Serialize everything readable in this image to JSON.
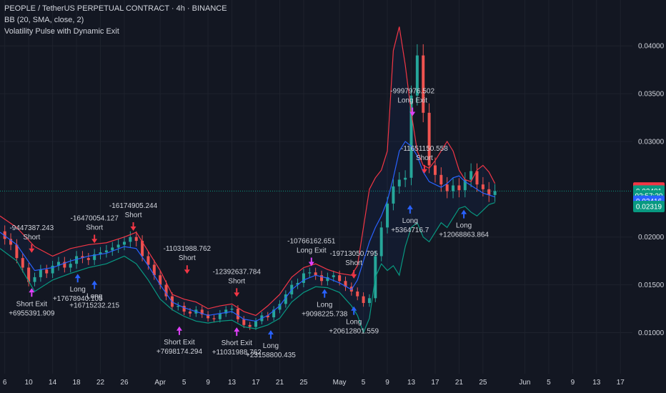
{
  "header": {
    "symbol_line": "PEOPLE / TetherUS PERPETUAL CONTRACT · 4h · BINANCE",
    "indicator_bb": "BB (20, SMA, close, 2)",
    "strategy_name": "Volatility Pulse with Dynamic Exit"
  },
  "colors": {
    "background": "#131722",
    "grid": "#1e222d",
    "candle_up": "#26a69a",
    "candle_down": "#ef5350",
    "bb_upper": "#f23645",
    "bb_lower": "#089981",
    "bb_basis": "#2962ff",
    "long_arrow": "#2962ff",
    "short_arrow": "#f23645",
    "exit_arrow": "#e040fb",
    "label_text": "#d1d4dc"
  },
  "chart_data": {
    "type": "line",
    "title": "PEOPLE / TetherUS PERPETUAL CONTRACT · 4h · BINANCE",
    "y_ticks": [
      "0.04000",
      "0.03500",
      "0.03000",
      "0.02000",
      "0.01500",
      "0.01000"
    ],
    "y_tick_values": [
      0.04,
      0.035,
      0.03,
      0.02,
      0.015,
      0.01
    ],
    "ylim": [
      0.0057,
      0.0448
    ],
    "x_ticks": [
      "6",
      "10",
      "14",
      "18",
      "22",
      "26",
      "Apr",
      "5",
      "9",
      "13",
      "17",
      "21",
      "25",
      "May",
      "5",
      "9",
      "13",
      "17",
      "21",
      "25",
      "Jun",
      "5",
      "9",
      "13",
      "17"
    ],
    "x_tick_days": [
      6,
      10,
      14,
      18,
      22,
      26,
      32,
      36,
      40,
      44,
      48,
      52,
      56,
      62,
      66,
      70,
      74,
      78,
      82,
      86,
      93,
      97,
      101,
      105,
      109
    ],
    "x_range_days": [
      5.2,
      111
    ],
    "series": [
      {
        "name": "close",
        "x": [
          5.2,
          6,
          7,
          8,
          9,
          10,
          11,
          12,
          13,
          14,
          15,
          16,
          17,
          18,
          19,
          20,
          21,
          22,
          23,
          24,
          25,
          26,
          27,
          28,
          29,
          30,
          31,
          32,
          33,
          34,
          35,
          36,
          37,
          38,
          39,
          40,
          41,
          42,
          43,
          44,
          45,
          46,
          47,
          48,
          49,
          50,
          51,
          52,
          53,
          54,
          55,
          56,
          57,
          58,
          59,
          60,
          61,
          62,
          63,
          64,
          65,
          66,
          67,
          68,
          69,
          70,
          71,
          72,
          73,
          74,
          75,
          76,
          77,
          78,
          79,
          80,
          81,
          82,
          83,
          84,
          85,
          86,
          87,
          88
        ],
        "y": [
          0.0206,
          0.0198,
          0.0192,
          0.0178,
          0.0168,
          0.0153,
          0.0158,
          0.0166,
          0.0162,
          0.017,
          0.0174,
          0.0168,
          0.0172,
          0.018,
          0.0178,
          0.0176,
          0.0182,
          0.0184,
          0.0186,
          0.0189,
          0.0192,
          0.0195,
          0.02,
          0.0196,
          0.018,
          0.0171,
          0.016,
          0.015,
          0.0138,
          0.0127,
          0.0128,
          0.0122,
          0.012,
          0.0124,
          0.0119,
          0.0115,
          0.0114,
          0.012,
          0.0124,
          0.0125,
          0.0114,
          0.0108,
          0.0106,
          0.0112,
          0.0118,
          0.0116,
          0.0124,
          0.013,
          0.014,
          0.015,
          0.0152,
          0.0162,
          0.0163,
          0.016,
          0.0154,
          0.0158,
          0.016,
          0.0154,
          0.0148,
          0.0143,
          0.0138,
          0.0131,
          0.0136,
          0.018,
          0.021,
          0.0235,
          0.0253,
          0.026,
          0.0262,
          0.0348,
          0.039,
          0.033,
          0.0275,
          0.0265,
          0.0255,
          0.0248,
          0.0254,
          0.0249,
          0.026,
          0.0269,
          0.0255,
          0.025,
          0.0244,
          0.0248
        ]
      },
      {
        "name": "BB upper",
        "x": [
          5.2,
          8,
          11,
          14,
          17,
          20,
          23,
          26,
          28,
          30,
          32,
          34,
          36,
          38,
          40,
          42,
          44,
          46,
          48,
          50,
          52,
          54,
          56,
          58,
          60,
          62,
          64,
          65,
          66,
          67,
          68,
          69,
          70,
          71,
          72,
          73,
          74,
          75,
          76,
          77,
          78,
          79,
          80,
          81,
          82,
          83,
          84,
          85,
          86,
          87,
          88
        ],
        "y": [
          0.0222,
          0.021,
          0.019,
          0.018,
          0.0188,
          0.0192,
          0.0194,
          0.02,
          0.0205,
          0.0185,
          0.0165,
          0.014,
          0.0135,
          0.0132,
          0.0125,
          0.0128,
          0.013,
          0.0122,
          0.0118,
          0.0128,
          0.014,
          0.0158,
          0.0168,
          0.0172,
          0.0166,
          0.0162,
          0.016,
          0.017,
          0.021,
          0.025,
          0.0262,
          0.027,
          0.029,
          0.0395,
          0.042,
          0.038,
          0.033,
          0.029,
          0.0275,
          0.0272,
          0.028,
          0.029,
          0.03,
          0.029,
          0.027,
          0.026,
          0.0258,
          0.027,
          0.0275,
          0.0268,
          0.0256
        ]
      },
      {
        "name": "BB basis",
        "x": [
          5.2,
          8,
          11,
          14,
          17,
          20,
          23,
          26,
          28,
          30,
          32,
          34,
          36,
          38,
          40,
          42,
          44,
          46,
          48,
          50,
          52,
          54,
          56,
          58,
          60,
          62,
          64,
          65,
          66,
          67,
          68,
          69,
          70,
          71,
          72,
          73,
          74,
          75,
          76,
          77,
          78,
          79,
          80,
          81,
          82,
          83,
          84,
          85,
          86,
          87,
          88
        ],
        "y": [
          0.0205,
          0.0192,
          0.0165,
          0.0168,
          0.0175,
          0.018,
          0.0183,
          0.019,
          0.0188,
          0.017,
          0.015,
          0.0132,
          0.0126,
          0.0122,
          0.0118,
          0.012,
          0.0122,
          0.0114,
          0.0112,
          0.0118,
          0.0128,
          0.0145,
          0.0155,
          0.016,
          0.0157,
          0.0152,
          0.0145,
          0.0155,
          0.0175,
          0.0195,
          0.021,
          0.0222,
          0.0238,
          0.0262,
          0.029,
          0.03,
          0.0295,
          0.0285,
          0.0268,
          0.0258,
          0.0255,
          0.0252,
          0.0256,
          0.0262,
          0.0264,
          0.0258,
          0.0254,
          0.025,
          0.0246,
          0.0244,
          0.0242
        ]
      },
      {
        "name": "BB lower",
        "x": [
          5.2,
          8,
          11,
          14,
          17,
          20,
          23,
          26,
          28,
          30,
          32,
          34,
          36,
          38,
          40,
          42,
          44,
          46,
          48,
          50,
          52,
          54,
          56,
          58,
          60,
          62,
          64,
          65,
          66,
          67,
          68,
          69,
          70,
          71,
          72,
          73,
          74,
          75,
          76,
          77,
          78,
          79,
          80,
          81,
          82,
          83,
          84,
          85,
          86,
          87,
          88
        ],
        "y": [
          0.0188,
          0.0175,
          0.0143,
          0.0155,
          0.0162,
          0.0168,
          0.0172,
          0.018,
          0.0172,
          0.0155,
          0.0135,
          0.0124,
          0.0117,
          0.0112,
          0.011,
          0.0112,
          0.0113,
          0.0106,
          0.0104,
          0.0108,
          0.0115,
          0.0132,
          0.0142,
          0.0148,
          0.0147,
          0.0142,
          0.0128,
          0.0118,
          0.01,
          0.0115,
          0.0158,
          0.0172,
          0.0165,
          0.017,
          0.016,
          0.019,
          0.021,
          0.0215,
          0.02,
          0.0195,
          0.0205,
          0.0215,
          0.021,
          0.022,
          0.023,
          0.0232,
          0.0226,
          0.0222,
          0.0228,
          0.0234,
          0.0236
        ]
      }
    ],
    "signals": [
      {
        "type": "short",
        "day": 10.5,
        "price": 0.0182,
        "label": "-9447387.243",
        "sub": "Short",
        "pos": "above"
      },
      {
        "type": "exit",
        "day": 10.5,
        "price": 0.0148,
        "label": "Short Exit",
        "sub": "+6955391.909",
        "pos": "below"
      },
      {
        "type": "long",
        "day": 18.2,
        "price": 0.0163,
        "label": "Long",
        "sub": "+17678940.105",
        "pos": "below"
      },
      {
        "type": "short",
        "day": 21.0,
        "price": 0.0192,
        "label": "-16470054.127",
        "sub": "Short",
        "pos": "above"
      },
      {
        "type": "long",
        "day": 21.0,
        "price": 0.0156,
        "label": "Long",
        "sub": "+16715232.215",
        "pos": "below"
      },
      {
        "type": "short",
        "day": 27.5,
        "price": 0.0205,
        "label": "-16174905.244",
        "sub": "Short",
        "pos": "above"
      },
      {
        "type": "short",
        "day": 36.5,
        "price": 0.016,
        "label": "-11031988.762",
        "sub": "Short",
        "pos": "above"
      },
      {
        "type": "exit",
        "day": 35.2,
        "price": 0.0108,
        "label": "Short Exit",
        "sub": "+7698174.294",
        "pos": "below"
      },
      {
        "type": "exit",
        "day": 44.8,
        "price": 0.0107,
        "label": "Short Exit",
        "sub": "+11031988.762",
        "pos": "below"
      },
      {
        "type": "short",
        "day": 44.8,
        "price": 0.0136,
        "label": "-12392637.784",
        "sub": "Short",
        "pos": "above"
      },
      {
        "type": "long",
        "day": 50.5,
        "price": 0.0104,
        "label": "Long",
        "sub": "+23158800.435",
        "pos": "below"
      },
      {
        "type": "exit",
        "day": 57.3,
        "price": 0.0168,
        "label": "-10766162.651",
        "sub": "Long Exit",
        "pos": "above"
      },
      {
        "type": "long",
        "day": 59.5,
        "price": 0.0147,
        "label": "Long",
        "sub": "+9098225.738",
        "pos": "below"
      },
      {
        "type": "short",
        "day": 64.4,
        "price": 0.0155,
        "label": "-19713050.795",
        "sub": "Short",
        "pos": "above"
      },
      {
        "type": "long",
        "day": 64.4,
        "price": 0.0129,
        "label": "Long",
        "sub": "+20612801.559",
        "pos": "below"
      },
      {
        "type": "exit",
        "day": 74.2,
        "price": 0.0325,
        "label": "-9997976.502",
        "sub": "Long Exit",
        "pos": "above"
      },
      {
        "type": "short",
        "day": 76.2,
        "price": 0.0265,
        "label": "-11651150.558",
        "sub": "Short",
        "pos": "above"
      },
      {
        "type": "long",
        "day": 73.8,
        "price": 0.0235,
        "label": "Long",
        "sub": "+5364716.7",
        "pos": "below"
      },
      {
        "type": "long",
        "day": 82.8,
        "price": 0.023,
        "label": "Long",
        "sub": "+12068863.864",
        "pos": "below"
      }
    ],
    "price_tags": [
      {
        "value": "0.02513",
        "price": 0.02513,
        "color": "#f23645"
      },
      {
        "value": "0.02481",
        "price": 0.02481,
        "color": "#089981"
      },
      {
        "value": "02:57:20",
        "price": 0.0243,
        "color": "#089981"
      },
      {
        "value": "0.02416",
        "price": 0.02375,
        "color": "#2962ff"
      },
      {
        "value": "0.02319",
        "price": 0.02319,
        "color": "#089981"
      }
    ],
    "current_price": 0.02481
  }
}
